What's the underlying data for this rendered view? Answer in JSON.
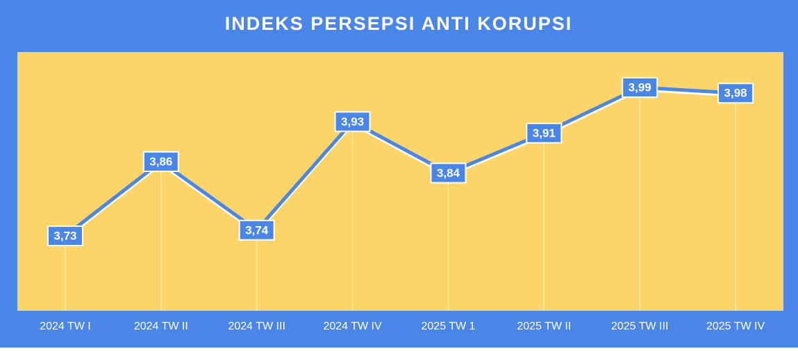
{
  "chart_data": {
    "type": "line",
    "title": "INDEKS PERSEPSI ANTI KORUPSI",
    "categories": [
      "2024 TW I",
      "2024 TW II",
      "2024 TW III",
      "2024 TW IV",
      "2025 TW 1",
      "2025 TW II",
      "2025 TW III",
      "2025 TW IV"
    ],
    "values": [
      3.73,
      3.86,
      3.74,
      3.93,
      3.84,
      3.91,
      3.99,
      3.98
    ],
    "value_labels": [
      "3,73",
      "3,86",
      "3,74",
      "3,93",
      "3,84",
      "3,91",
      "3,99",
      "3,98"
    ],
    "color": "#4a86e8"
  }
}
